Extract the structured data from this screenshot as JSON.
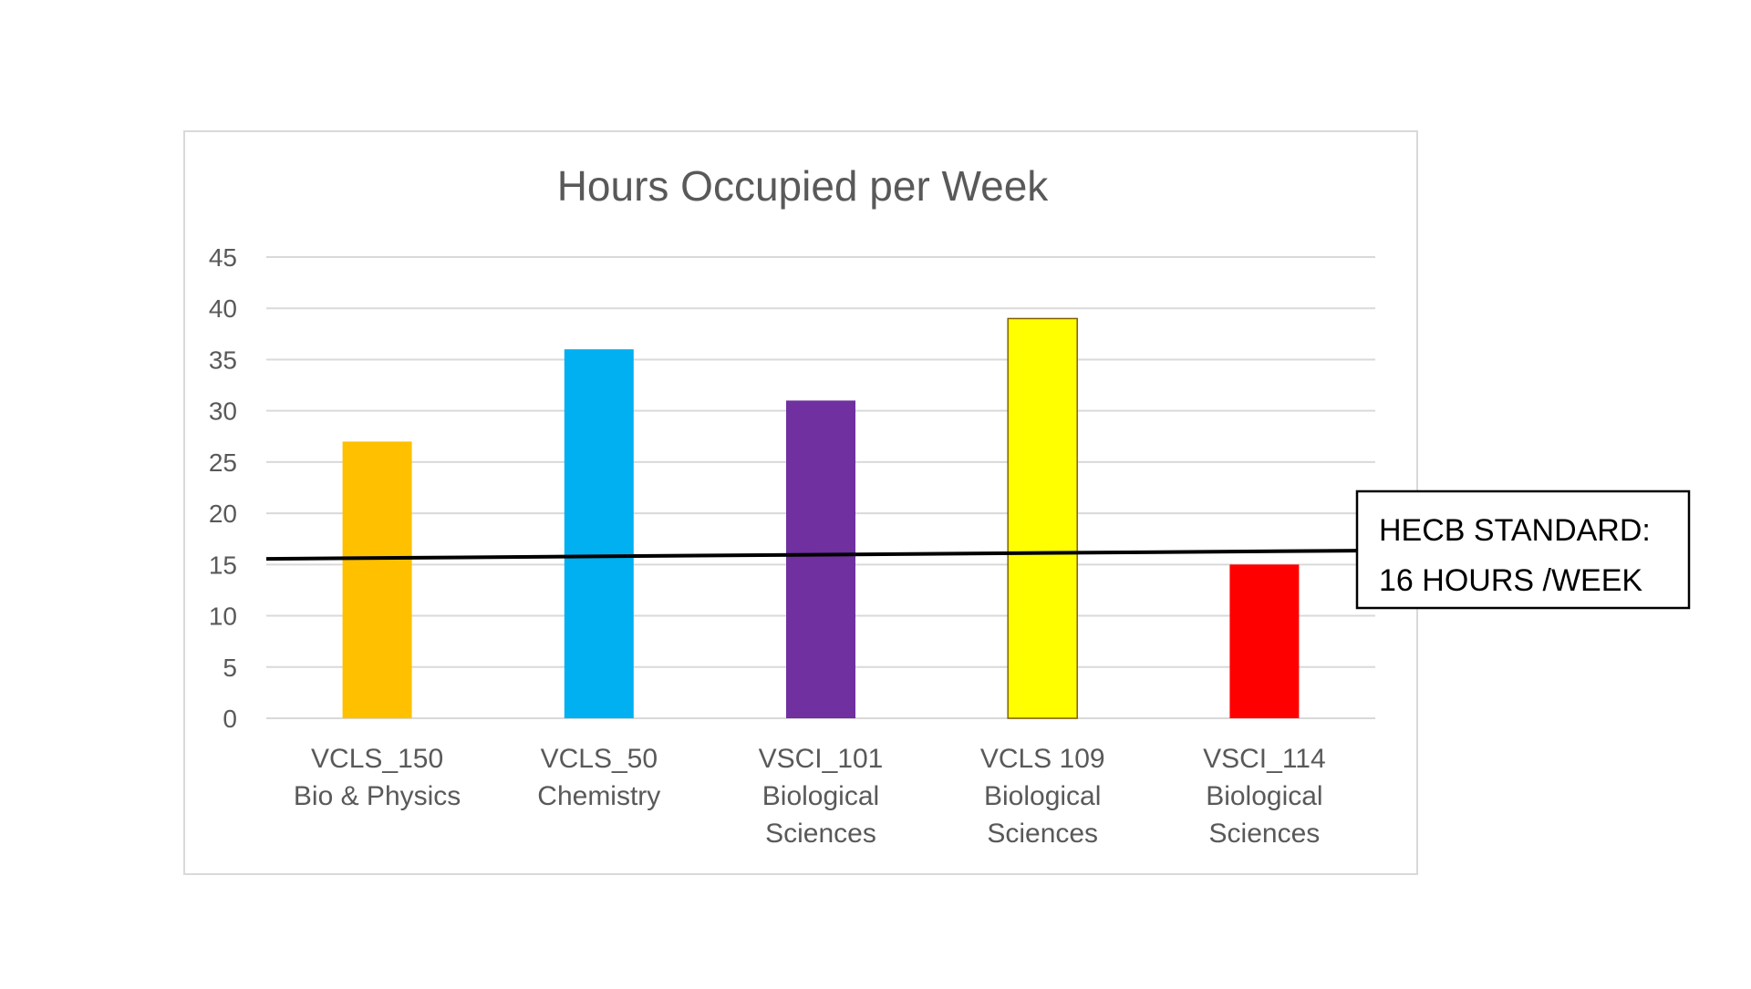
{
  "chart_data": {
    "type": "bar",
    "title": "Hours Occupied per Week",
    "categories": [
      [
        "VCLS_150",
        "Bio & Physics"
      ],
      [
        "VCLS_50",
        "Chemistry"
      ],
      [
        "VSCI_101",
        "Biological",
        "Sciences"
      ],
      [
        "VCLS 109",
        "Biological",
        "Sciences"
      ],
      [
        "VSCI_114",
        "Biological",
        "Sciences"
      ]
    ],
    "values": [
      27,
      36,
      31,
      39,
      15
    ],
    "colors": [
      "#FFC000",
      "#00B0F0",
      "#7030A0",
      "#FFFF00",
      "#FF0000"
    ],
    "ylim": [
      0,
      45
    ],
    "yticks": [
      0,
      5,
      10,
      15,
      20,
      25,
      30,
      35,
      40,
      45
    ],
    "grid": true,
    "legend": "none",
    "reference_line": {
      "value": 16,
      "label_lines": [
        "HECB STANDARD:",
        "16 HOURS /WEEK"
      ]
    }
  }
}
